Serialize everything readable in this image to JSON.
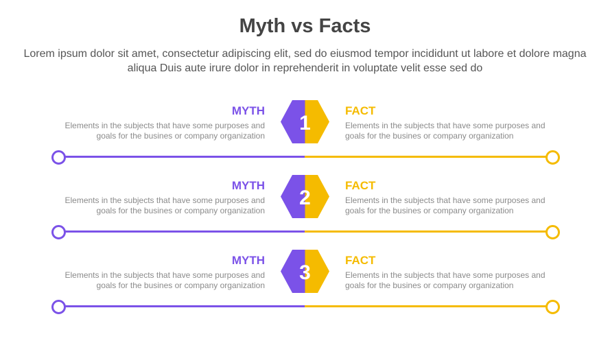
{
  "title": "Myth vs Facts",
  "subtitle": "Lorem ipsum dolor sit amet, consectetur adipiscing elit, sed do eiusmod tempor incididunt ut labore et dolore magna aliqua Duis aute irure dolor in reprehenderit in voluptate velit esse sed do",
  "colors": {
    "myth": "#7b52e8",
    "fact": "#f5bb00"
  },
  "rows": [
    {
      "number": "1",
      "myth_label": "MYTH",
      "myth_text": "Elements in the subjects that have some purposes and goals for the  busines or company organization",
      "fact_label": "FACT",
      "fact_text": "Elements in the subjects that have some purposes and goals for the  busines or company organization"
    },
    {
      "number": "2",
      "myth_label": "MYTH",
      "myth_text": "Elements in the subjects that have some purposes and goals for the  busines or company organization",
      "fact_label": "FACT",
      "fact_text": "Elements in the subjects that have some purposes and goals for the  busines or company organization"
    },
    {
      "number": "3",
      "myth_label": "MYTH",
      "myth_text": "Elements in the subjects that have some purposes and goals for the  busines or company organization",
      "fact_label": "FACT",
      "fact_text": "Elements in the subjects that have some purposes and goals for the  busines or company organization"
    }
  ]
}
